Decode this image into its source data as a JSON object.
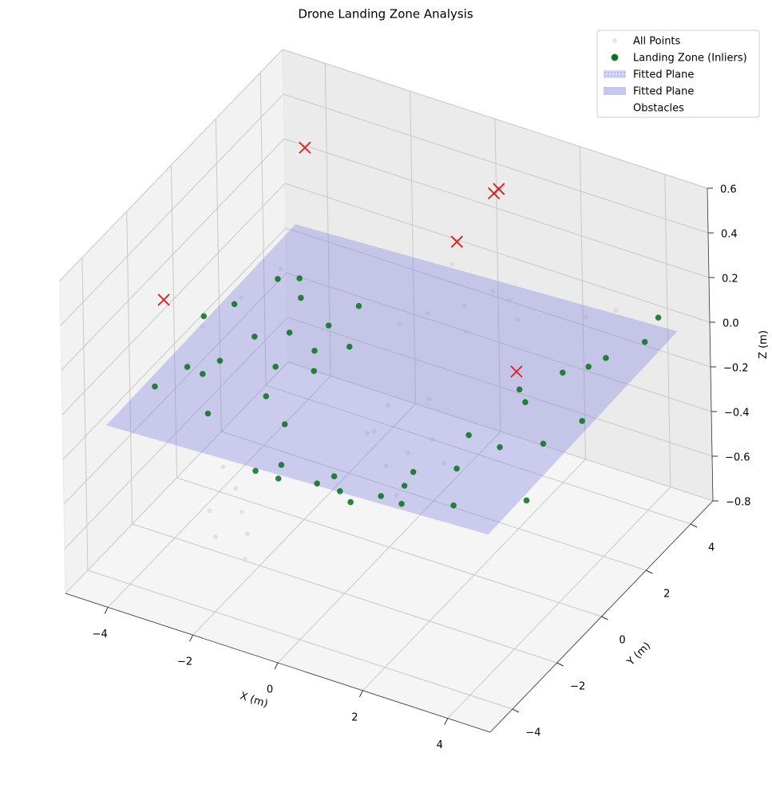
{
  "chart_data": {
    "type": "scatter3d",
    "title": "Drone Landing Zone Analysis",
    "xlabel": "X (m)",
    "ylabel": "Y (m)",
    "zlabel": "Z (m)",
    "xlim": [
      -5,
      5
    ],
    "ylim": [
      -5,
      5
    ],
    "zlim": [
      -0.8,
      0.6
    ],
    "xticks": [
      {
        "value": -4,
        "label": "−4"
      },
      {
        "value": -2,
        "label": "−2"
      },
      0,
      2,
      4
    ],
    "yticks": [
      {
        "value": -4,
        "label": "−4"
      },
      {
        "value": -2,
        "label": "−2"
      },
      0,
      2,
      4
    ],
    "zticks": [
      {
        "value": -0.8,
        "label": "−0.8"
      },
      {
        "value": -0.6,
        "label": "−0.6"
      },
      {
        "value": -0.4,
        "label": "−0.4"
      },
      {
        "value": -0.2,
        "label": "−0.2"
      },
      {
        "value": 0,
        "label": "0.0"
      },
      0.2,
      0.4,
      0.6
    ],
    "grid": true,
    "legend": "upper right",
    "series": [
      {
        "name": "All Points",
        "color": "#d3d3d3",
        "x": [
          -4.6,
          -4.2,
          -3.8,
          -4.4,
          -0.5,
          0.2,
          0.8,
          -0.2,
          0.5,
          1.0,
          -1.0,
          -0.6,
          0.0,
          0.4,
          -2.0,
          -1.6,
          -1.2,
          -2.4,
          0.8,
          1.2,
          -0.8,
          0.3,
          -1.8,
          -1.0,
          1.5,
          -2.2,
          2.5,
          3.0,
          -0.3,
          0.6
        ],
        "y": [
          0.5,
          1.5,
          2.5,
          -0.5,
          1.0,
          1.5,
          0.5,
          -0.5,
          -1.0,
          -1.5,
          2.5,
          3.0,
          3.5,
          2.8,
          -3.0,
          -3.5,
          -4.0,
          -2.8,
          4.0,
          3.6,
          4.5,
          4.2,
          -4.3,
          -4.5,
          -0.3,
          -3.8,
          4.2,
          4.6,
          0.0,
          -0.2
        ],
        "z": [
          -0.15,
          -0.1,
          -0.05,
          -0.2,
          -0.3,
          -0.28,
          -0.32,
          -0.25,
          -0.3,
          -0.35,
          -0.12,
          -0.1,
          -0.08,
          -0.1,
          -0.35,
          -0.38,
          -0.4,
          -0.3,
          -0.06,
          -0.08,
          -0.05,
          -0.07,
          -0.42,
          -0.45,
          -0.3,
          -0.38,
          -0.05,
          -0.03,
          -0.3,
          -0.32
        ]
      },
      {
        "name": "Landing Zone (Inliers)",
        "color": "#0a6b2a",
        "x": [
          -4.3,
          -3.9,
          -3.5,
          -3.1,
          -2.7,
          -2.2,
          -1.8,
          -1.4,
          -4.1,
          -3.6,
          -3.0,
          -2.4,
          -1.9,
          -1.5,
          -4.4,
          -3.7,
          -2.9,
          -2.1,
          -1.6,
          -3.3,
          -1.2,
          -0.5,
          0.2,
          0.9,
          1.6,
          2.3,
          -0.8,
          0.5,
          1.2,
          2.0,
          2.0,
          2.6,
          3.2,
          3.8,
          4.3,
          2.4,
          3.0,
          3.6,
          4.1,
          2.2,
          2.8,
          3.4,
          4.0,
          4.4,
          3.1
        ],
        "y": [
          -2.2,
          -1.5,
          -0.8,
          0.0,
          0.8,
          1.6,
          2.2,
          -1.9,
          1.0,
          2.0,
          -2.3,
          -0.4,
          0.4,
          1.2,
          0.2,
          -1.2,
          1.7,
          -1.4,
          -0.2,
          2.4,
          -3.6,
          -3.9,
          -3.5,
          -3.8,
          -3.3,
          -3.7,
          -3.2,
          -3.3,
          -3.9,
          -3.0,
          -2.6,
          -1.8,
          -1.0,
          -0.2,
          0.6,
          1.4,
          2.2,
          3.0,
          3.8,
          -0.5,
          0.9,
          2.6,
          4.6,
          -2.1,
          -2.9
        ],
        "z": [
          -0.12,
          -0.08,
          -0.1,
          -0.05,
          -0.09,
          -0.11,
          -0.06,
          -0.14,
          -0.07,
          -0.03,
          -0.15,
          -0.1,
          -0.08,
          -0.12,
          -0.06,
          -0.13,
          -0.04,
          -0.11,
          -0.09,
          -0.05,
          -0.16,
          -0.12,
          -0.14,
          -0.1,
          -0.13,
          -0.08,
          -0.15,
          -0.11,
          -0.12,
          -0.09,
          -0.07,
          -0.1,
          -0.05,
          -0.08,
          -0.03,
          -0.09,
          -0.06,
          -0.04,
          -0.02,
          -0.11,
          -0.07,
          -0.05,
          0.0,
          -0.1,
          -0.12
        ]
      }
    ],
    "surfaces": [
      {
        "name": "Fitted Plane",
        "color": "#8080e0",
        "hatch": true,
        "x": [
          -4.5,
          4.5,
          4.5,
          -4.5
        ],
        "y": [
          -4,
          -4,
          4.5,
          4.5
        ],
        "z": [
          -0.12,
          -0.05,
          -0.02,
          -0.1
        ]
      },
      {
        "name": "Fitted Plane",
        "color": "#8080e0",
        "hatch": false,
        "x": [
          -4.5,
          4.5,
          4.5,
          -4.5
        ],
        "y": [
          -4,
          -4,
          4.5,
          4.5
        ],
        "z": [
          -0.12,
          -0.05,
          -0.02,
          -0.1
        ]
      }
    ],
    "obstacles": {
      "name": "Obstacles",
      "color": "#e41a1c",
      "x": [
        -3.3,
        0.48,
        0.69,
        0.26,
        -4.38,
        2.39
      ],
      "y": [
        2.74,
        4.0,
        3.83,
        2.74,
        -1.59,
        1.3
      ],
      "z": [
        0.5,
        0.4,
        0.45,
        0.3,
        0.2,
        0.0
      ]
    }
  }
}
